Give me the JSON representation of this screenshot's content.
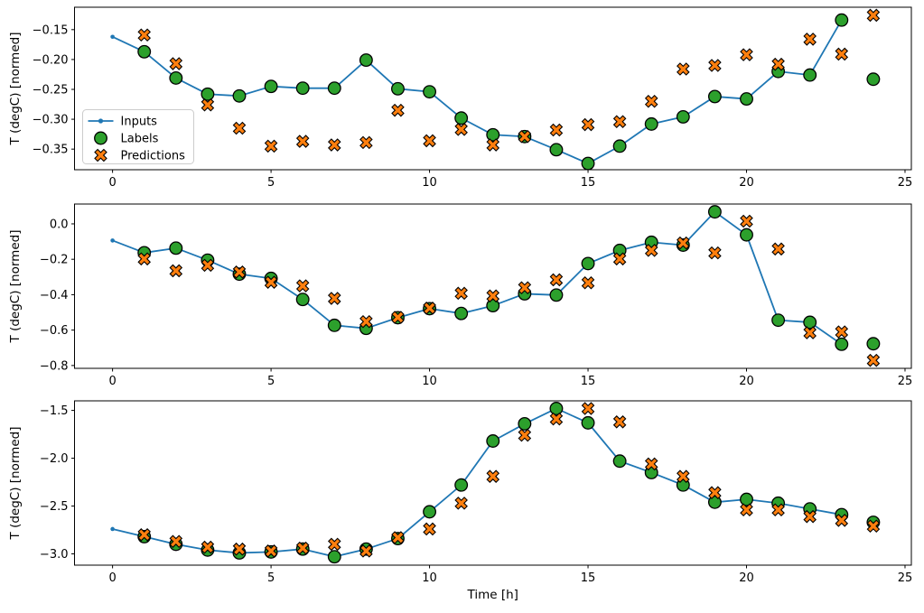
{
  "figure": {
    "xlabel": "Time [h]",
    "ylabel": "T (degC) [normed]",
    "legend": {
      "inputs": "Inputs",
      "labels": "Labels",
      "predictions": "Predictions"
    },
    "colors": {
      "inputs_line": "#1f77b4",
      "labels_marker": "#2ca02c",
      "predictions_marker": "#ff7f0e",
      "marker_edge": "#000000",
      "legend_border": "#cccccc",
      "axes": "#000000"
    }
  },
  "chart_data": [
    {
      "type": "line",
      "title": "",
      "xlabel": "",
      "ylabel": "T (degC) [normed]",
      "xlim": [
        -1.2,
        25.2
      ],
      "ylim": [
        -0.3845,
        -0.1125
      ],
      "xticks": [
        0,
        5,
        10,
        15,
        20,
        25
      ],
      "ytick_values": [
        -0.15,
        -0.2,
        -0.25,
        -0.3,
        -0.35
      ],
      "ytick_labels": [
        "−0.15",
        "−0.20",
        "−0.25",
        "−0.30",
        "−0.35"
      ],
      "legend_visible": true,
      "series": [
        {
          "name": "Inputs",
          "kind": "line",
          "marker": "dot",
          "x": [
            0,
            1,
            2,
            3,
            4,
            5,
            6,
            7,
            8,
            9,
            10,
            11,
            12,
            13,
            14,
            15,
            16,
            17,
            18,
            19,
            20,
            21,
            22,
            23
          ],
          "y": [
            -0.162,
            -0.187,
            -0.231,
            -0.258,
            -0.261,
            -0.245,
            -0.248,
            -0.248,
            -0.201,
            -0.249,
            -0.254,
            -0.298,
            -0.326,
            -0.329,
            -0.351,
            -0.374,
            -0.345,
            -0.308,
            -0.296,
            -0.262,
            -0.266,
            -0.22,
            -0.226,
            -0.134
          ]
        },
        {
          "name": "Labels",
          "kind": "scatter",
          "marker": "circle",
          "x": [
            1,
            2,
            3,
            4,
            5,
            6,
            7,
            8,
            9,
            10,
            11,
            12,
            13,
            14,
            15,
            16,
            17,
            18,
            19,
            20,
            21,
            22,
            23,
            24
          ],
          "y": [
            -0.187,
            -0.231,
            -0.258,
            -0.261,
            -0.245,
            -0.248,
            -0.248,
            -0.201,
            -0.249,
            -0.254,
            -0.298,
            -0.326,
            -0.329,
            -0.351,
            -0.374,
            -0.345,
            -0.308,
            -0.296,
            -0.262,
            -0.266,
            -0.22,
            -0.226,
            -0.134,
            -0.233
          ]
        },
        {
          "name": "Predictions",
          "kind": "scatter",
          "marker": "X",
          "x": [
            1,
            2,
            3,
            4,
            5,
            6,
            7,
            8,
            9,
            10,
            11,
            12,
            13,
            14,
            15,
            16,
            17,
            18,
            19,
            20,
            21,
            22,
            23,
            24
          ],
          "y": [
            -0.159,
            -0.207,
            -0.276,
            -0.315,
            -0.345,
            -0.337,
            -0.343,
            -0.339,
            -0.285,
            -0.336,
            -0.317,
            -0.343,
            -0.329,
            -0.318,
            -0.309,
            -0.304,
            -0.27,
            -0.216,
            -0.21,
            -0.192,
            -0.208,
            -0.166,
            -0.191,
            -0.126
          ]
        }
      ]
    },
    {
      "type": "line",
      "title": "",
      "xlabel": "",
      "ylabel": "T (degC) [normed]",
      "xlim": [
        -1.2,
        25.2
      ],
      "ylim": [
        -0.816,
        0.112
      ],
      "xticks": [
        0,
        5,
        10,
        15,
        20,
        25
      ],
      "ytick_values": [
        0.0,
        -0.2,
        -0.4,
        -0.6,
        -0.8
      ],
      "ytick_labels": [
        "0.0",
        "−0.2",
        "−0.4",
        "−0.6",
        "−0.8"
      ],
      "legend_visible": false,
      "series": [
        {
          "name": "Inputs",
          "kind": "line",
          "marker": "dot",
          "x": [
            0,
            1,
            2,
            3,
            4,
            5,
            6,
            7,
            8,
            9,
            10,
            11,
            12,
            13,
            14,
            15,
            16,
            17,
            18,
            19,
            20,
            21,
            22,
            23
          ],
          "y": [
            -0.094,
            -0.163,
            -0.137,
            -0.205,
            -0.284,
            -0.308,
            -0.427,
            -0.573,
            -0.59,
            -0.53,
            -0.479,
            -0.506,
            -0.462,
            -0.395,
            -0.402,
            -0.224,
            -0.15,
            -0.104,
            -0.12,
            0.068,
            -0.062,
            -0.544,
            -0.556,
            -0.68
          ]
        },
        {
          "name": "Labels",
          "kind": "scatter",
          "marker": "circle",
          "x": [
            1,
            2,
            3,
            4,
            5,
            6,
            7,
            8,
            9,
            10,
            11,
            12,
            13,
            14,
            15,
            16,
            17,
            18,
            19,
            20,
            21,
            22,
            23,
            24
          ],
          "y": [
            -0.163,
            -0.137,
            -0.205,
            -0.284,
            -0.308,
            -0.427,
            -0.573,
            -0.59,
            -0.53,
            -0.479,
            -0.506,
            -0.462,
            -0.395,
            -0.402,
            -0.224,
            -0.15,
            -0.104,
            -0.12,
            0.068,
            -0.062,
            -0.544,
            -0.556,
            -0.68,
            -0.677
          ]
        },
        {
          "name": "Predictions",
          "kind": "scatter",
          "marker": "X",
          "x": [
            1,
            2,
            3,
            4,
            5,
            6,
            7,
            8,
            9,
            10,
            11,
            12,
            13,
            14,
            15,
            16,
            17,
            18,
            19,
            20,
            21,
            22,
            23,
            24
          ],
          "y": [
            -0.198,
            -0.265,
            -0.234,
            -0.272,
            -0.33,
            -0.35,
            -0.421,
            -0.552,
            -0.528,
            -0.476,
            -0.392,
            -0.407,
            -0.361,
            -0.316,
            -0.333,
            -0.198,
            -0.15,
            -0.108,
            -0.164,
            0.015,
            -0.142,
            -0.615,
            -0.61,
            -0.771
          ]
        }
      ]
    },
    {
      "type": "line",
      "title": "",
      "xlabel": "Time [h]",
      "ylabel": "T (degC) [normed]",
      "xlim": [
        -1.2,
        25.2
      ],
      "ylim": [
        -3.118,
        -1.4
      ],
      "xticks": [
        0,
        5,
        10,
        15,
        20,
        25
      ],
      "ytick_values": [
        -1.5,
        -2.0,
        -2.5,
        -3.0
      ],
      "ytick_labels": [
        "−1.5",
        "−2.0",
        "−2.5",
        "−3.0"
      ],
      "legend_visible": false,
      "series": [
        {
          "name": "Inputs",
          "kind": "line",
          "marker": "dot",
          "x": [
            0,
            1,
            2,
            3,
            4,
            5,
            6,
            7,
            8,
            9,
            10,
            11,
            12,
            13,
            14,
            15,
            16,
            17,
            18,
            19,
            20,
            21,
            22,
            23
          ],
          "y": [
            -2.74,
            -2.82,
            -2.9,
            -2.96,
            -2.99,
            -2.98,
            -2.95,
            -3.03,
            -2.95,
            -2.84,
            -2.56,
            -2.28,
            -1.82,
            -1.64,
            -1.48,
            -1.63,
            -2.03,
            -2.15,
            -2.28,
            -2.46,
            -2.43,
            -2.47,
            -2.53,
            -2.59
          ]
        },
        {
          "name": "Labels",
          "kind": "scatter",
          "marker": "circle",
          "x": [
            1,
            2,
            3,
            4,
            5,
            6,
            7,
            8,
            9,
            10,
            11,
            12,
            13,
            14,
            15,
            16,
            17,
            18,
            19,
            20,
            21,
            22,
            23,
            24
          ],
          "y": [
            -2.82,
            -2.9,
            -2.96,
            -2.99,
            -2.98,
            -2.95,
            -3.03,
            -2.95,
            -2.84,
            -2.56,
            -2.28,
            -1.82,
            -1.64,
            -1.48,
            -1.63,
            -2.03,
            -2.15,
            -2.28,
            -2.46,
            -2.43,
            -2.47,
            -2.53,
            -2.59,
            -2.67
          ]
        },
        {
          "name": "Predictions",
          "kind": "scatter",
          "marker": "X",
          "x": [
            1,
            2,
            3,
            4,
            5,
            6,
            7,
            8,
            9,
            10,
            11,
            12,
            13,
            14,
            15,
            16,
            17,
            18,
            19,
            20,
            21,
            22,
            23,
            24
          ],
          "y": [
            -2.8,
            -2.87,
            -2.93,
            -2.95,
            -2.97,
            -2.94,
            -2.9,
            -2.97,
            -2.83,
            -2.74,
            -2.47,
            -2.19,
            -1.76,
            -1.59,
            -1.48,
            -1.62,
            -2.06,
            -2.19,
            -2.36,
            -2.54,
            -2.54,
            -2.61,
            -2.65,
            -2.71
          ]
        }
      ]
    }
  ]
}
